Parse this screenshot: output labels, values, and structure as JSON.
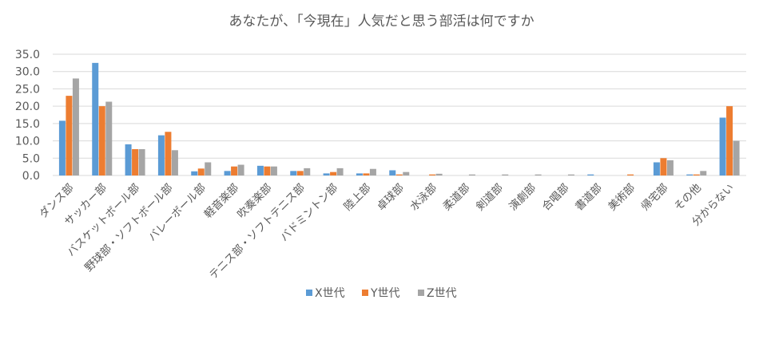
{
  "chart_data": {
    "type": "bar",
    "title": "あなたが、「今現在」人気だと思う部活は何ですか",
    "categories": [
      "ダンス部",
      "サッカー部",
      "バスケットボール部",
      "野球部・ソフトボール部",
      "バレーボール部",
      "軽音楽部",
      "吹奏楽部",
      "テニス部・ソフトテニス部",
      "バドミントン部",
      "陸上部",
      "卓球部",
      "水泳部",
      "柔道部",
      "剣道部",
      "演劇部",
      "合唱部",
      "書道部",
      "美術部",
      "帰宅部",
      "その他",
      "分からない"
    ],
    "series": [
      {
        "name": "X世代",
        "color": "#5B9BD5",
        "values": [
          15.8,
          32.5,
          9.0,
          11.6,
          1.2,
          1.3,
          2.8,
          1.3,
          0.6,
          0.6,
          1.5,
          0.0,
          0.0,
          0.0,
          0.0,
          0.0,
          0.3,
          0.0,
          3.8,
          0.3,
          16.7
        ]
      },
      {
        "name": "Y世代",
        "color": "#ED7D31",
        "values": [
          23.0,
          20.0,
          7.6,
          12.6,
          2.0,
          2.6,
          2.6,
          1.3,
          1.0,
          0.6,
          0.3,
          0.3,
          0.0,
          0.0,
          0.0,
          0.0,
          0.0,
          0.3,
          5.0,
          0.3,
          20.0
        ]
      },
      {
        "name": "Z世代",
        "color": "#A5A5A5",
        "values": [
          28.0,
          21.3,
          7.6,
          7.3,
          3.8,
          3.1,
          2.6,
          2.1,
          2.1,
          1.9,
          1.0,
          0.5,
          0.3,
          0.3,
          0.3,
          0.3,
          0.0,
          0.0,
          4.4,
          1.3,
          10.0
        ]
      }
    ],
    "ylim": [
      0,
      35
    ],
    "yticks": [
      "0.0",
      "5.0",
      "10.0",
      "15.0",
      "20.0",
      "25.0",
      "30.0",
      "35.0"
    ],
    "grid": true,
    "legend_position": "bottom"
  }
}
